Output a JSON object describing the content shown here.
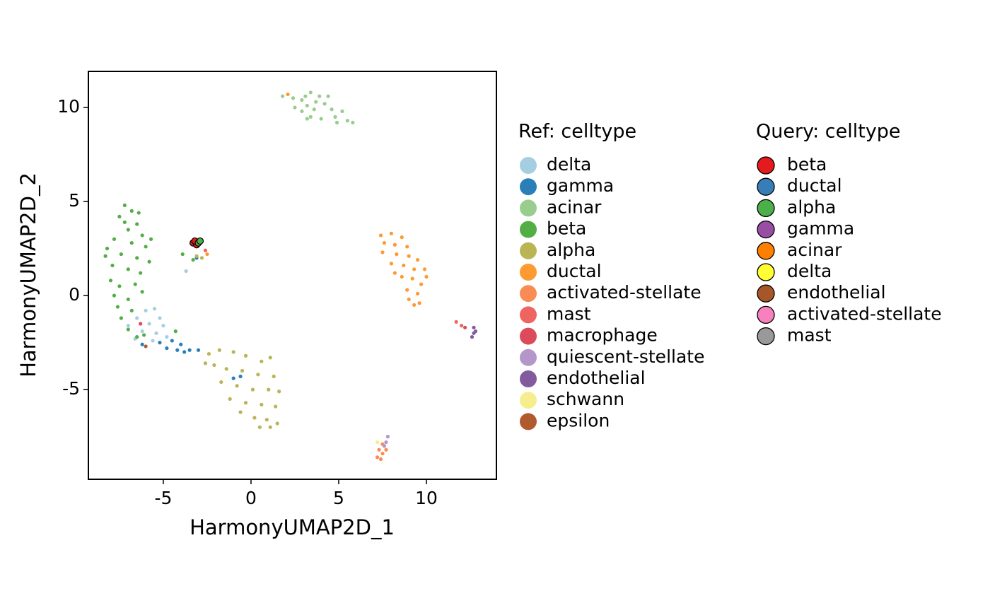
{
  "chart_data": {
    "type": "scatter",
    "xlabel": "HarmonyUMAP2D_1",
    "ylabel": "HarmonyUMAP2D_2",
    "xlim": [
      -9.27,
      13.99
    ],
    "ylim": [
      -9.77,
      11.92
    ],
    "xticks": [
      -5,
      0,
      5,
      10
    ],
    "yticks": [
      -5,
      0,
      5,
      10
    ],
    "ref": {
      "title": "Ref: celltype",
      "series": [
        {
          "name": "delta",
          "color": "#a6cee3",
          "x": [
            -6.5,
            -6,
            -5.5,
            -5.2,
            -5.8,
            -6.2,
            -5.4,
            -4.8,
            -6.6,
            -5,
            -3.7,
            -7,
            -5.6
          ],
          "y": [
            -1.2,
            -0.8,
            -0.7,
            -1.2,
            -1.5,
            -1.9,
            -2,
            -2.2,
            -2.3,
            -1.6,
            1.3,
            -1.6,
            -2.4
          ]
        },
        {
          "name": "gamma",
          "color": "#2b7fb8",
          "x": [
            -4.5,
            -4,
            -3.5,
            -3,
            -4.8,
            -5.2,
            -4.2,
            -3.8,
            -0.6,
            -1,
            -3.1,
            -6.2
          ],
          "y": [
            -2.4,
            -2.6,
            -2.9,
            -2.9,
            -2.8,
            -2.5,
            -2.9,
            -3,
            -4.3,
            -4.4,
            2,
            -2.6
          ]
        },
        {
          "name": "acinar",
          "color": "#98cd8e",
          "x": [
            1.8,
            2.4,
            2.9,
            3.4,
            3.9,
            3.2,
            2.9,
            3.6,
            4.2,
            4.6,
            3.4,
            4,
            4.8,
            5.2,
            5.5,
            5.8,
            3.2,
            2.5,
            4.4,
            3.7,
            4.9,
            3.1
          ],
          "y": [
            10.6,
            10.5,
            10.4,
            10.8,
            10.6,
            10.1,
            9.8,
            9.9,
            10.2,
            9.9,
            9.5,
            9.4,
            9.5,
            9.8,
            9.3,
            9.2,
            9.4,
            10,
            10.6,
            10.3,
            9.2,
            10.6
          ]
        },
        {
          "name": "beta",
          "color": "#52ae45",
          "x": [
            -7.2,
            -6.8,
            -7.5,
            -6.5,
            -7,
            -6.2,
            -7.8,
            -6.8,
            -8.2,
            -7.4,
            -6,
            -6.5,
            -7.9,
            -7,
            -6.3,
            -8,
            -7.5,
            -6.6,
            -7.8,
            -7,
            -6.2,
            -7.6,
            -6.8,
            -7.4,
            -7,
            -6.5,
            -8.3,
            -5.7,
            -5.8,
            -7.2,
            -6.4,
            -3.9,
            -3.3,
            -6.1,
            -4.3
          ],
          "y": [
            4.8,
            4.5,
            4.2,
            3.8,
            3.5,
            3.2,
            3,
            2.8,
            2.5,
            2.2,
            2.6,
            2,
            1.6,
            1.4,
            1.2,
            0.8,
            0.5,
            0.6,
            0,
            -0.2,
            0.2,
            -0.6,
            -0.8,
            -1.2,
            -1.8,
            -2.2,
            2.1,
            3,
            1.8,
            3.9,
            4.4,
            2.2,
            1.9,
            -2.1,
            -1.9
          ]
        },
        {
          "name": "alpha",
          "color": "#bab455",
          "x": [
            -2.4,
            -1.8,
            -1,
            -0.3,
            0.6,
            1.1,
            -2.1,
            -1.4,
            -0.5,
            0.4,
            1.3,
            -1.7,
            -0.8,
            0.1,
            1,
            1.6,
            -1.2,
            -0.3,
            0.6,
            1.4,
            -0.6,
            0.2,
            0.9,
            1.5,
            0.5,
            1.1,
            -2.6,
            -3.1,
            -2.8
          ],
          "y": [
            -3.1,
            -2.9,
            -3,
            -3.2,
            -3.5,
            -3.3,
            -3.7,
            -3.9,
            -4,
            -4.2,
            -4.3,
            -4.6,
            -4.8,
            -5,
            -5,
            -5.1,
            -5.5,
            -5.7,
            -5.8,
            -5.9,
            -6.2,
            -6.5,
            -6.6,
            -6.8,
            -7,
            -7,
            -3.6,
            2.1,
            2
          ]
        },
        {
          "name": "ductal",
          "color": "#fd9a30",
          "x": [
            7.4,
            8,
            8.6,
            7.6,
            8.2,
            8.9,
            7.5,
            8.3,
            9,
            9.5,
            8,
            8.7,
            9.3,
            9.9,
            8.6,
            9.2,
            9.7,
            8.9,
            9.5,
            9,
            9.6,
            9.3,
            8.2,
            10,
            2.1,
            -2.5
          ],
          "y": [
            3.2,
            3.3,
            3.1,
            2.8,
            2.7,
            2.6,
            2.3,
            2.2,
            2.1,
            1.9,
            1.7,
            1.6,
            1.4,
            1.4,
            1,
            0.9,
            0.6,
            0.3,
            0.1,
            -0.2,
            -0.4,
            -0.5,
            1.2,
            1,
            10.7,
            2.2
          ]
        },
        {
          "name": "activated-stellate",
          "color": "#fb8b55",
          "x": [
            7.3,
            7.5,
            7.4,
            7.2,
            7.6,
            7.5,
            7.7
          ],
          "y": [
            -8.2,
            -8.4,
            -8.7,
            -8.6,
            -8,
            -7.9,
            -8.2
          ]
        },
        {
          "name": "mast",
          "color": "#ef6461",
          "x": [
            11.7,
            12,
            -2.6
          ],
          "y": [
            -1.4,
            -1.6,
            2.4
          ]
        },
        {
          "name": "macrophage",
          "color": "#dc4a5b",
          "x": [
            12.2,
            -6.3
          ],
          "y": [
            -1.7,
            -1.5
          ]
        },
        {
          "name": "quiescent-stellate",
          "color": "#b497c8",
          "x": [
            7.7,
            7.6,
            7.8
          ],
          "y": [
            -7.8,
            -8,
            -7.5
          ]
        },
        {
          "name": "endothelial",
          "color": "#815b9e",
          "x": [
            12.7,
            12.7,
            12.6,
            12.8
          ],
          "y": [
            -1.7,
            -2,
            -2.2,
            -1.9
          ]
        },
        {
          "name": "schwann",
          "color": "#f6ee8c",
          "x": [
            7.2
          ],
          "y": [
            -7.8
          ]
        },
        {
          "name": "epsilon",
          "color": "#b05a2e",
          "x": [
            -6
          ],
          "y": [
            -2.7
          ]
        }
      ]
    },
    "query": {
      "title": "Query: celltype",
      "series": [
        {
          "name": "beta",
          "color": "#e41a1c",
          "x": [
            -3.3,
            -3.1,
            -3.2
          ],
          "y": [
            2.8,
            2.7,
            2.9
          ]
        },
        {
          "name": "ductal",
          "color": "#377eb8",
          "x": [],
          "y": []
        },
        {
          "name": "alpha",
          "color": "#4daf4a",
          "x": [
            -3,
            -2.9
          ],
          "y": [
            2.8,
            2.9
          ]
        },
        {
          "name": "gamma",
          "color": "#984ea3",
          "x": [],
          "y": []
        },
        {
          "name": "acinar",
          "color": "#ff7f00",
          "x": [],
          "y": []
        },
        {
          "name": "delta",
          "color": "#ffff33",
          "x": [],
          "y": []
        },
        {
          "name": "endothelial",
          "color": "#a65628",
          "x": [],
          "y": []
        },
        {
          "name": "activated-stellate",
          "color": "#f781bf",
          "x": [],
          "y": []
        },
        {
          "name": "mast",
          "color": "#999999",
          "x": [],
          "y": []
        }
      ]
    }
  }
}
